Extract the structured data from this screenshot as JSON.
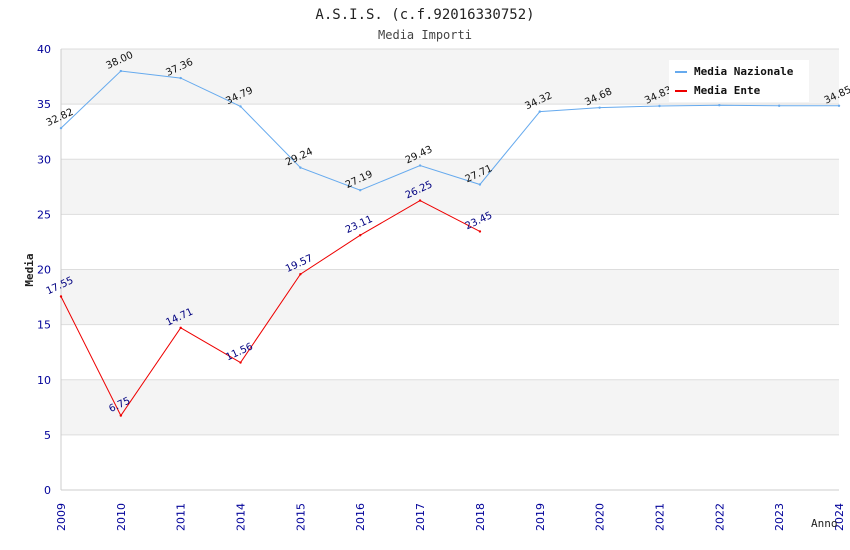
{
  "chart_data": {
    "type": "line",
    "title": "A.S.I.S. (c.f.92016330752)",
    "subtitle": "Media Importi",
    "xlabel": "Anno",
    "ylabel": "Media",
    "ylim": [
      0,
      40
    ],
    "yticks": [
      0,
      5,
      10,
      15,
      20,
      25,
      30,
      35,
      40
    ],
    "categories": [
      "2009",
      "2010",
      "2011",
      "2014",
      "2015",
      "2016",
      "2017",
      "2018",
      "2019",
      "2020",
      "2021",
      "2022",
      "2023",
      "2024"
    ],
    "grid": true,
    "legend_position": "top-right",
    "series": [
      {
        "name": "Media Nazionale",
        "color": "#66aaee",
        "values": [
          32.82,
          38.0,
          37.36,
          34.79,
          29.24,
          27.19,
          29.43,
          27.71,
          34.32,
          34.68,
          34.83,
          34.9,
          34.85,
          34.85
        ],
        "labels": [
          "32.82",
          "38.00",
          "37.36",
          "34.79",
          "29.24",
          "27.19",
          "29.43",
          "27.71",
          "34.32",
          "34.68",
          "34.83",
          null,
          null,
          "34.85"
        ]
      },
      {
        "name": "Media Ente",
        "color": "#ee0000",
        "values": [
          17.55,
          6.75,
          14.71,
          11.56,
          19.57,
          23.11,
          26.25,
          23.45,
          null,
          null,
          null,
          null,
          null,
          null
        ],
        "labels": [
          "17.55",
          "6.75",
          "14.71",
          "11.56",
          "19.57",
          "23.11",
          "26.25",
          "23.45",
          null,
          null,
          null,
          null,
          null,
          null
        ]
      }
    ]
  }
}
